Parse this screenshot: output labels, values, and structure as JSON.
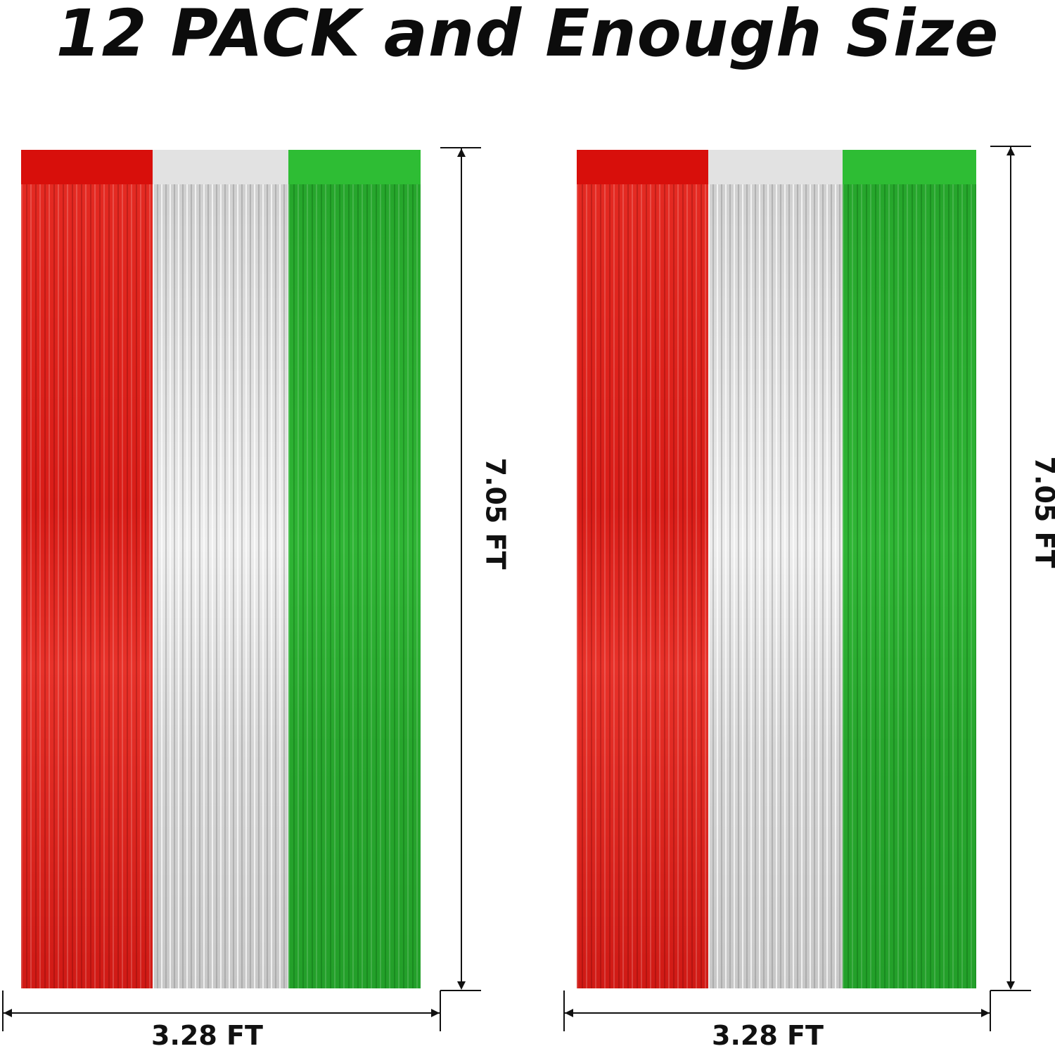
{
  "title": "12 PACK and Enough Size",
  "curtains": [
    {
      "width_label": "3.28 FT",
      "height_label": "7.05 FT",
      "colors": [
        "#d80f0b",
        "#e2e2e2",
        "#2ebd34"
      ]
    },
    {
      "width_label": "3.28 FT",
      "height_label": "7.05 FT",
      "colors": [
        "#d80f0b",
        "#e2e2e2",
        "#2ebd34"
      ]
    }
  ]
}
